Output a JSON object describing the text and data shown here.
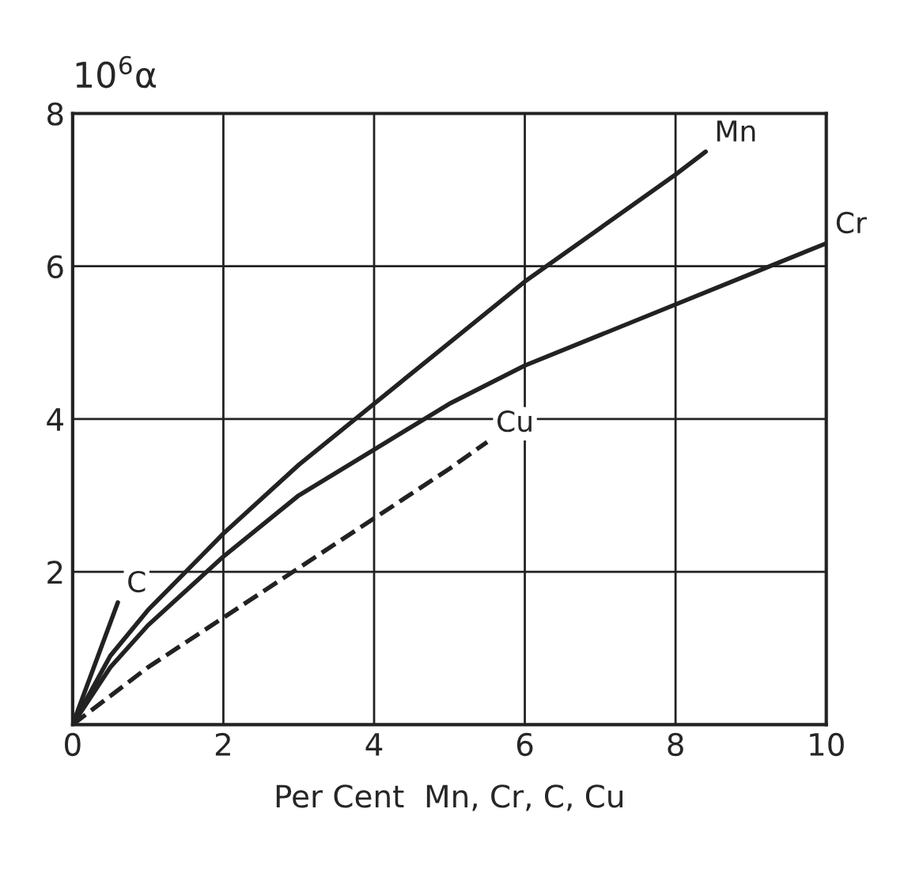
{
  "chart_data": {
    "type": "line",
    "xlabel": "Per Cent  Mn, Cr, C, Cu",
    "ylabel": "10$^{6}$α",
    "xlim": [
      0,
      10
    ],
    "ylim": [
      0,
      8
    ],
    "xticks": [
      0,
      2,
      4,
      6,
      8,
      10
    ],
    "yticks": [
      {
        "value": 0,
        "label": null
      },
      2,
      4,
      6,
      8
    ],
    "grid": true,
    "series": [
      {
        "name": "Mn",
        "color": "#222222",
        "line_style": "solid",
        "x": [
          0,
          0.5,
          1,
          2,
          3,
          4,
          5,
          6,
          7,
          8,
          8.4
        ],
        "values": [
          0,
          0.9,
          1.5,
          2.5,
          3.4,
          4.2,
          5.0,
          5.8,
          6.5,
          7.2,
          7.5
        ]
      },
      {
        "name": "Cr",
        "color": "#222222",
        "line_style": "solid",
        "x": [
          0,
          0.5,
          1,
          2,
          3,
          4,
          5,
          6,
          7,
          8,
          9,
          10
        ],
        "values": [
          0,
          0.75,
          1.3,
          2.2,
          3.0,
          3.6,
          4.2,
          4.7,
          5.1,
          5.5,
          5.9,
          6.3
        ]
      },
      {
        "name": "C",
        "color": "#222222",
        "line_style": "solid",
        "x": [
          0,
          0.6
        ],
        "values": [
          0,
          1.6
        ]
      },
      {
        "name": "Cu",
        "color": "#222222",
        "line_style": "dashed",
        "x": [
          0,
          1,
          2,
          3,
          4,
          5,
          5.5
        ],
        "values": [
          0,
          0.75,
          1.4,
          2.05,
          2.7,
          3.35,
          3.7
        ]
      }
    ]
  }
}
